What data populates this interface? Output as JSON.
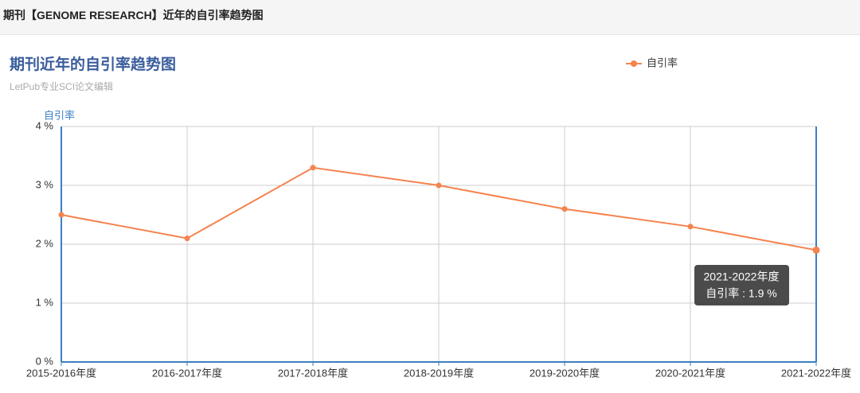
{
  "header": {
    "title": "期刊【GENOME RESEARCH】近年的自引率趋势图"
  },
  "chart_data": {
    "type": "line",
    "title": "期刊近年的自引率趋势图",
    "subtitle": "LetPub专业SCI论文编辑",
    "y_axis_label": "自引率",
    "categories": [
      "2015-2016年度",
      "2016-2017年度",
      "2017-2018年度",
      "2018-2019年度",
      "2019-2020年度",
      "2020-2021年度",
      "2021-2022年度"
    ],
    "series": [
      {
        "name": "自引率",
        "color": "#f5834e",
        "values": [
          2.5,
          2.1,
          3.3,
          3.0,
          2.6,
          2.3,
          1.9
        ]
      }
    ],
    "ylim": [
      0,
      4
    ],
    "yticks": [
      {
        "value": 0,
        "label": "0 %"
      },
      {
        "value": 1,
        "label": "1 %"
      },
      {
        "value": 2,
        "label": "2 %"
      },
      {
        "value": 3,
        "label": "3 %"
      },
      {
        "value": 4,
        "label": "4 %"
      }
    ],
    "grid": true,
    "legend": "top-right",
    "tooltip": {
      "title": "2021-2022年度",
      "text": "自引率 : 1.9 %"
    }
  }
}
